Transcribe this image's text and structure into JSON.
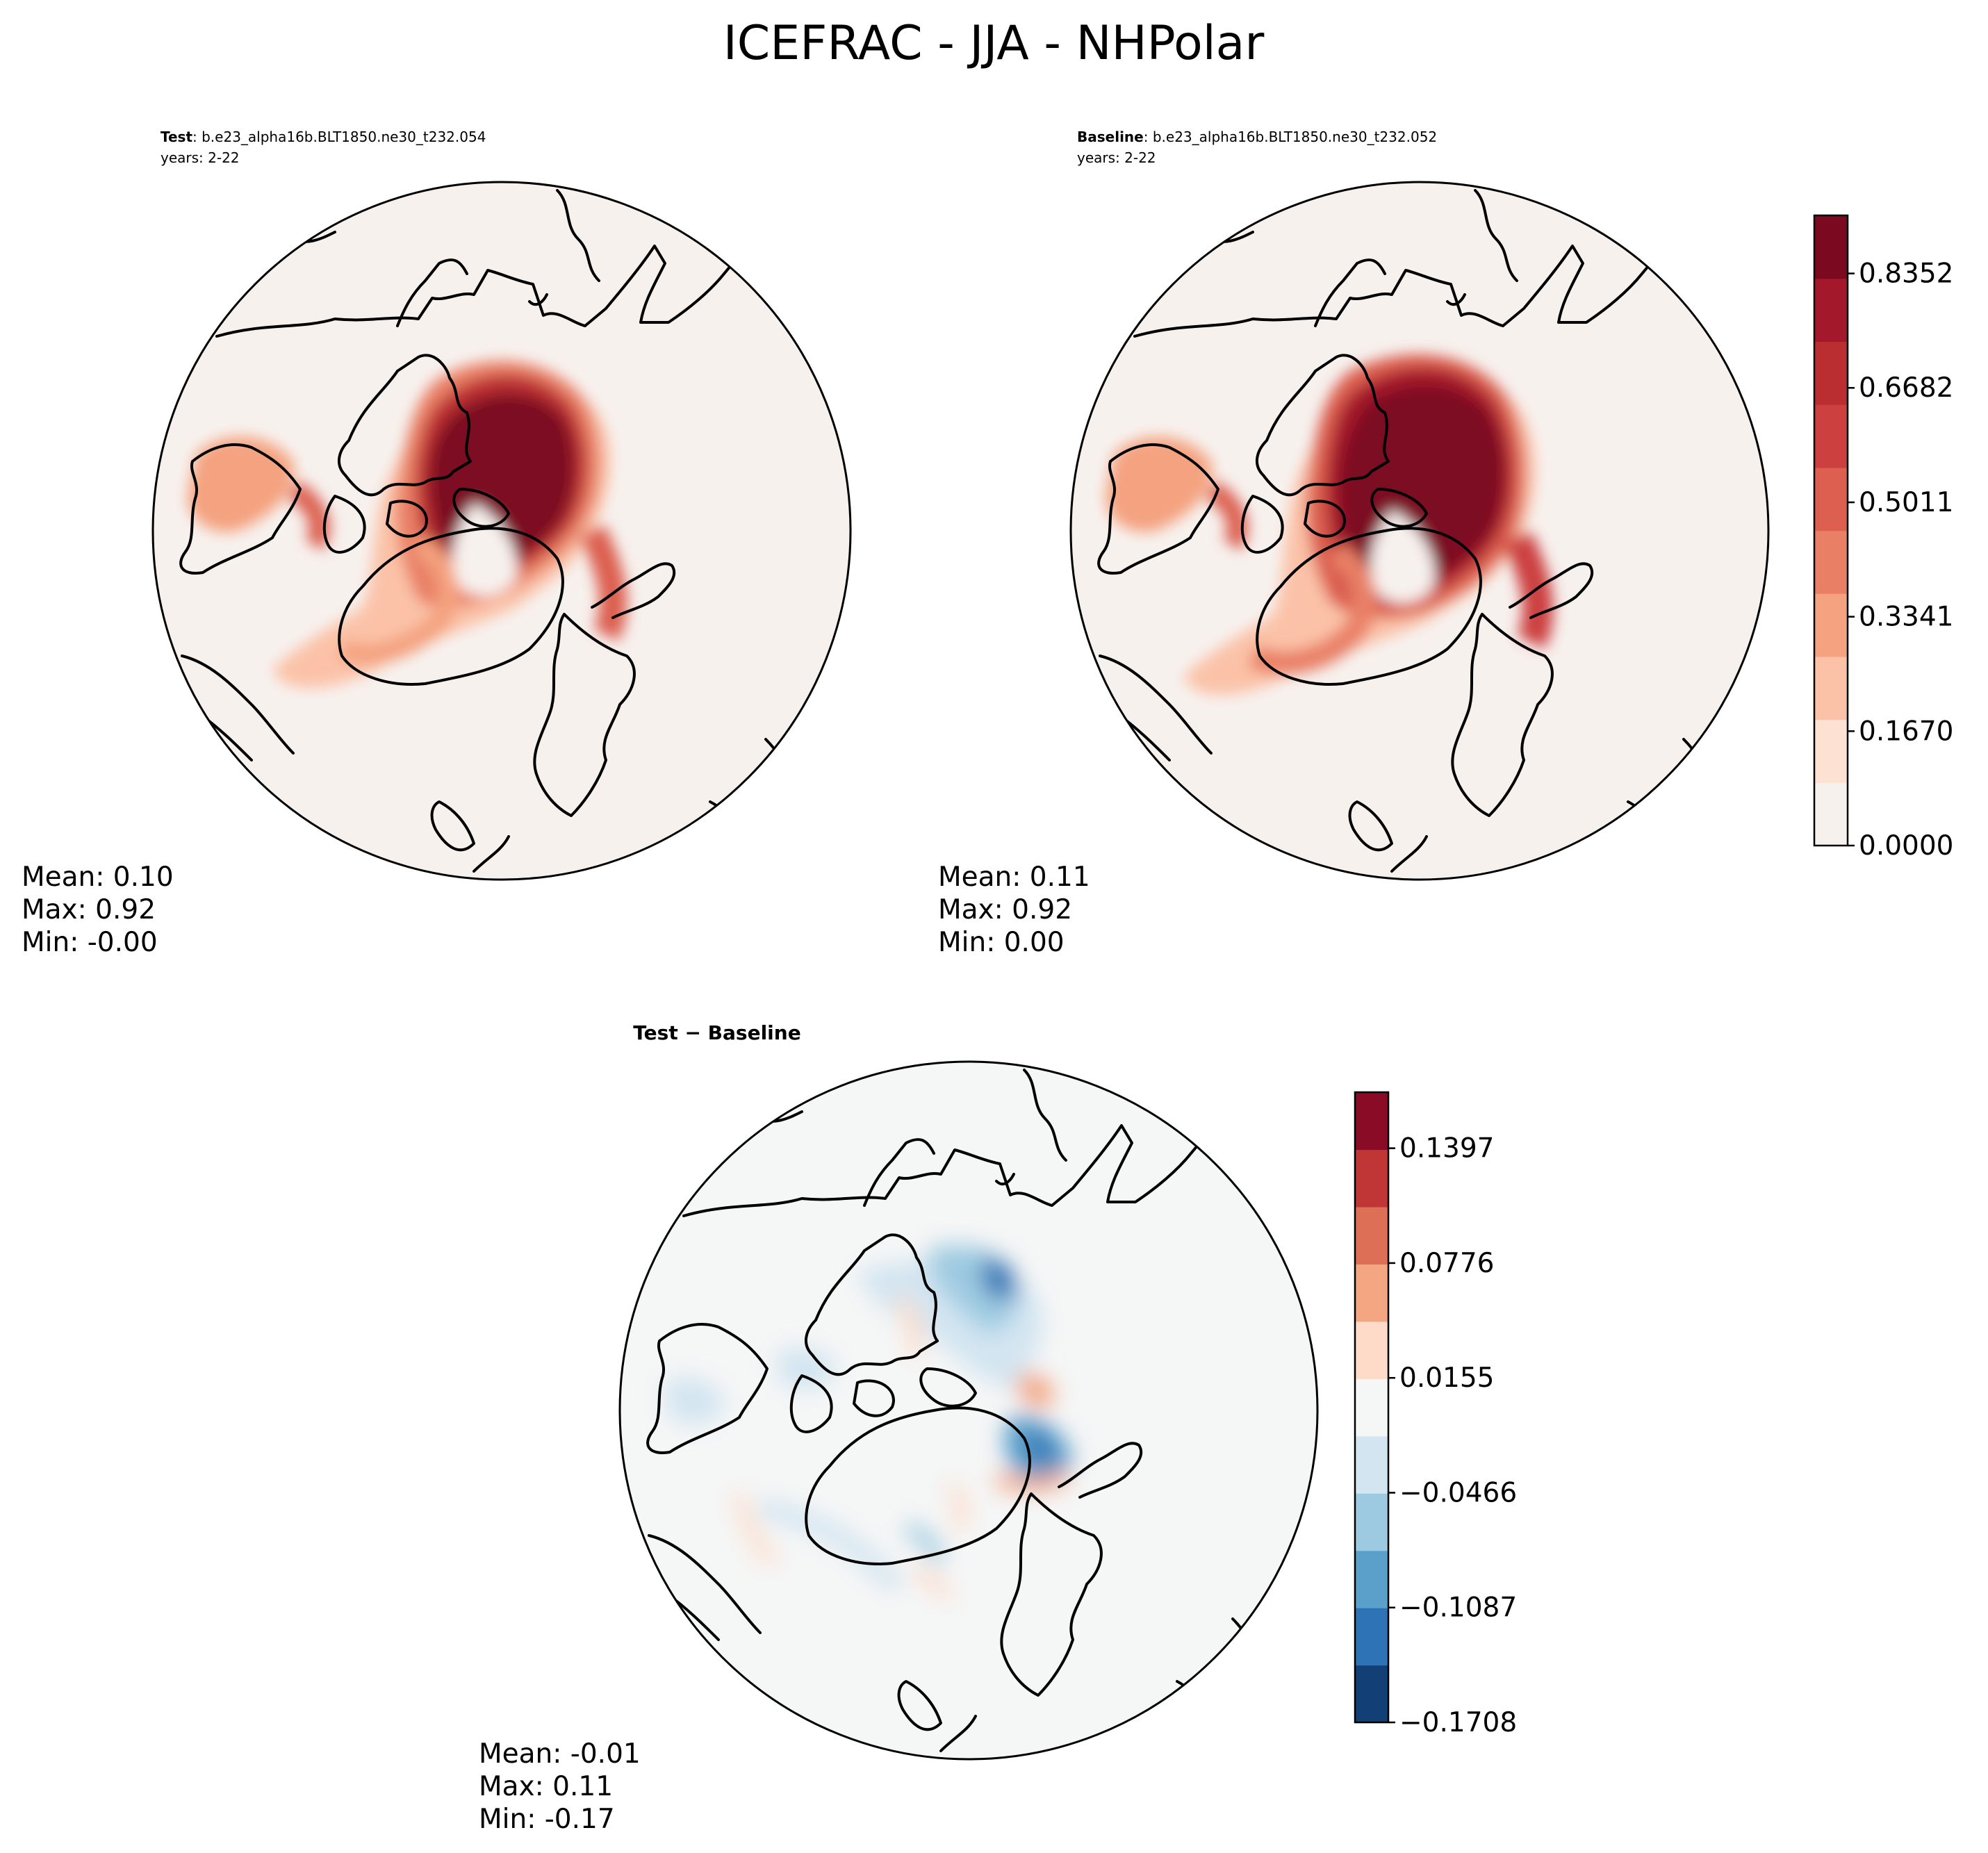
{
  "figure": {
    "title": "ICEFRAC - JJA - NHPolar",
    "test_panel": {
      "label_bold": "Test",
      "label_rest": ": b.e23_alpha16b.BLT1850.ne30_t232.054",
      "years": "years: 2-22",
      "stats": [
        "Mean:  0.10",
        "Max:  0.92",
        "Min: -0.00"
      ]
    },
    "baseline_panel": {
      "label_bold": "Baseline",
      "label_rest": ": b.e23_alpha16b.BLT1850.ne30_t232.052",
      "years": "years: 2-22",
      "stats": [
        "Mean:  0.11",
        "Max:  0.92",
        "Min:  0.00"
      ]
    },
    "diff_panel": {
      "title": "Test − Baseline",
      "stats": [
        "Mean: -0.01",
        "Max:  0.11",
        "Min: -0.17"
      ]
    }
  },
  "chart_data": [
    {
      "type": "heatmap",
      "map": "north-polar-stereographic",
      "field": "ICEFRAC",
      "colormap": "Reds",
      "levels": [
        0.0,
        0.167,
        0.3341,
        0.5011,
        0.6682,
        0.8352
      ],
      "tick_labels": [
        "0.0000",
        "0.1670",
        "0.3341",
        "0.5011",
        "0.6682",
        "0.8352"
      ],
      "vmin": 0.0,
      "vmax": 0.92,
      "colors": [
        "#f7f1ee",
        "#fde1d3",
        "#fbc2a8",
        "#f4a27f",
        "#e98066",
        "#dc5f4f",
        "#cc4040",
        "#ba2e32",
        "#a3182a",
        "#7b0a20"
      ]
    },
    {
      "type": "heatmap",
      "map": "north-polar-stereographic",
      "field": "ICEFRAC difference",
      "colormap": "RdBu_r",
      "levels": [
        -0.1708,
        -0.1087,
        -0.0466,
        0.0155,
        0.0776,
        0.1397
      ],
      "tick_labels": [
        "−0.1708",
        "−0.1087",
        "−0.0466",
        "0.0155",
        "0.0776",
        "0.1397"
      ],
      "vmin": -0.1708,
      "vmax": 0.17,
      "colors": [
        "#113f76",
        "#2d73b6",
        "#5b9fcb",
        "#9dcae1",
        "#d3e5f1",
        "#f5f6f6",
        "#fddbc8",
        "#f4a582",
        "#de6f57",
        "#c03535",
        "#890b25"
      ]
    }
  ]
}
